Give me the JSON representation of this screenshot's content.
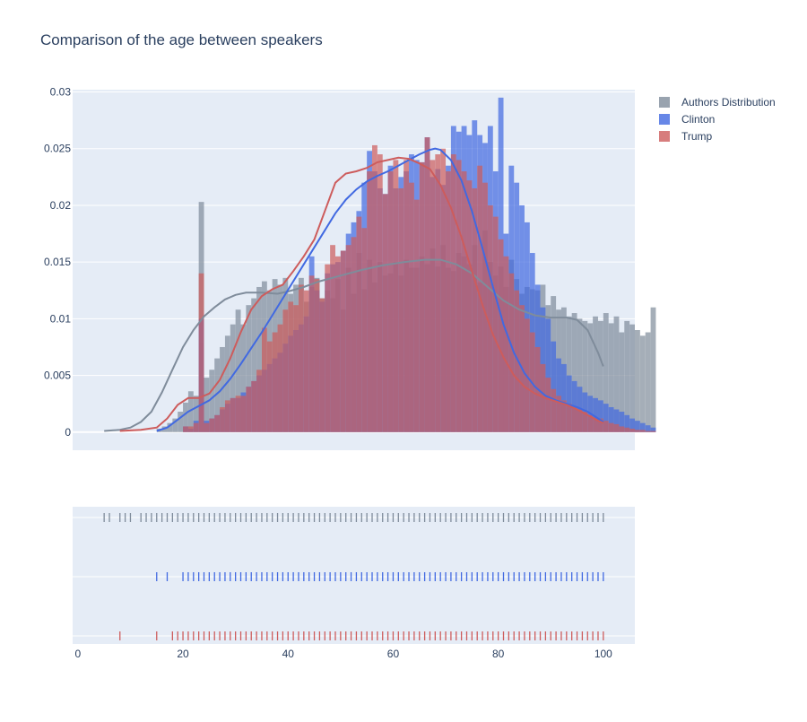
{
  "chart_data": {
    "type": "histogram-kde-rug",
    "title": "Comparison of the age between speakers",
    "xlabel": "",
    "ylabel": "",
    "xlim": [
      -1,
      106
    ],
    "ylim": [
      -0.0016,
      0.0302
    ],
    "x_ticks": [
      0,
      20,
      40,
      60,
      80,
      100
    ],
    "y_ticks": [
      0,
      0.005,
      0.01,
      0.015,
      0.02,
      0.025,
      0.03
    ],
    "y_tick_labels": [
      "0",
      "0.005",
      "0.01",
      "0.015",
      "0.02",
      "0.025",
      "0.03"
    ],
    "bin_start": 15,
    "bin_width": 1,
    "legend_position": "top-right",
    "series": [
      {
        "name": "Authors Distribution",
        "color": "#7f8c9b",
        "hist": [
          0.0003,
          0.0005,
          0.0008,
          0.0012,
          0.0018,
          0.0026,
          0.0036,
          0.0032,
          0.0203,
          0.0048,
          0.0055,
          0.0065,
          0.0075,
          0.0085,
          0.0095,
          0.0108,
          0.0095,
          0.0112,
          0.0118,
          0.0128,
          0.0133,
          0.0125,
          0.0135,
          0.013,
          0.0136,
          0.0122,
          0.013,
          0.0136,
          0.0115,
          0.0128,
          0.0136,
          0.0118,
          0.0125,
          0.0118,
          0.0135,
          0.0108,
          0.0145,
          0.0122,
          0.0158,
          0.0126,
          0.0152,
          0.0132,
          0.015,
          0.0138,
          0.014,
          0.015,
          0.0138,
          0.0152,
          0.0145,
          0.0145,
          0.0155,
          0.0148,
          0.0162,
          0.0146,
          0.0165,
          0.0145,
          0.0142,
          0.0158,
          0.0155,
          0.0148,
          0.0165,
          0.0132,
          0.0178,
          0.015,
          0.0138,
          0.0146,
          0.0128,
          0.0152,
          0.0135,
          0.0122,
          0.0128,
          0.0126,
          0.0125,
          0.013,
          0.0112,
          0.012,
          0.0108,
          0.011,
          0.0102,
          0.0105,
          0.01,
          0.0098,
          0.0096,
          0.0102,
          0.0098,
          0.0105,
          0.0096,
          0.0102,
          0.0088,
          0.0098,
          0.0095,
          0.009,
          0.0085,
          0.0088,
          0.011
        ],
        "kde": [
          [
            5,
            0.0001
          ],
          [
            8,
            0.0002
          ],
          [
            10,
            0.0004
          ],
          [
            12,
            0.0009
          ],
          [
            14,
            0.0018
          ],
          [
            16,
            0.0035
          ],
          [
            18,
            0.0055
          ],
          [
            20,
            0.0075
          ],
          [
            22,
            0.009
          ],
          [
            24,
            0.0102
          ],
          [
            26,
            0.011
          ],
          [
            28,
            0.0117
          ],
          [
            30,
            0.0121
          ],
          [
            32,
            0.0123
          ],
          [
            35,
            0.0123
          ],
          [
            38,
            0.0122
          ],
          [
            40,
            0.0124
          ],
          [
            43,
            0.0128
          ],
          [
            46,
            0.0133
          ],
          [
            50,
            0.0138
          ],
          [
            54,
            0.0143
          ],
          [
            58,
            0.0147
          ],
          [
            62,
            0.015
          ],
          [
            66,
            0.0152
          ],
          [
            69,
            0.0152
          ],
          [
            72,
            0.0148
          ],
          [
            75,
            0.014
          ],
          [
            78,
            0.0128
          ],
          [
            81,
            0.0116
          ],
          [
            84,
            0.0108
          ],
          [
            87,
            0.0103
          ],
          [
            90,
            0.0101
          ],
          [
            93,
            0.0101
          ],
          [
            95,
            0.0099
          ],
          [
            97,
            0.009
          ],
          [
            99,
            0.007
          ],
          [
            100,
            0.0058
          ]
        ],
        "rug": [
          5,
          6,
          8,
          9,
          10,
          12,
          13,
          14,
          15,
          16,
          17,
          18,
          19,
          20,
          21,
          22,
          23,
          24,
          25,
          26,
          27,
          28,
          29,
          30,
          31,
          32,
          33,
          34,
          35,
          36,
          37,
          38,
          39,
          40,
          41,
          42,
          43,
          44,
          45,
          46,
          47,
          48,
          49,
          50,
          51,
          52,
          53,
          54,
          55,
          56,
          57,
          58,
          59,
          60,
          61,
          62,
          63,
          64,
          65,
          66,
          67,
          68,
          69,
          70,
          71,
          72,
          73,
          74,
          75,
          76,
          77,
          78,
          79,
          80,
          81,
          82,
          83,
          84,
          85,
          86,
          87,
          88,
          89,
          90,
          91,
          92,
          93,
          94,
          95,
          96,
          97,
          98,
          99,
          100
        ]
      },
      {
        "name": "Clinton",
        "color": "#4169e1",
        "hist": [
          0,
          0,
          0,
          0,
          0,
          0.0005,
          0.0003,
          0.001,
          0.01,
          0.001,
          0.0012,
          0.0015,
          0.002,
          0.0025,
          0.003,
          0.003,
          0.0035,
          0.004,
          0.0045,
          0.005,
          0.0055,
          0.006,
          0.0065,
          0.007,
          0.0078,
          0.0085,
          0.009,
          0.0095,
          0.0102,
          0.0155,
          0.0125,
          0.0115,
          0.014,
          0.0148,
          0.015,
          0.016,
          0.0175,
          0.0185,
          0.0195,
          0.022,
          0.0248,
          0.023,
          0.0215,
          0.021,
          0.0235,
          0.0215,
          0.0225,
          0.023,
          0.0245,
          0.024,
          0.0238,
          0.026,
          0.0225,
          0.0232,
          0.0218,
          0.0235,
          0.027,
          0.0265,
          0.027,
          0.0262,
          0.0275,
          0.0262,
          0.0255,
          0.027,
          0.023,
          0.0295,
          0.0175,
          0.0235,
          0.022,
          0.02,
          0.0185,
          0.0158,
          0.013,
          0.011,
          0.01,
          0.008,
          0.0065,
          0.006,
          0.005,
          0.0045,
          0.004,
          0.0035,
          0.0032,
          0.003,
          0.0028,
          0.0025,
          0.0022,
          0.002,
          0.0018,
          0.0015,
          0.0012,
          0.001,
          0.0008,
          0.0006,
          0.0004
        ],
        "kde": [
          [
            15,
            0.0001
          ],
          [
            17,
            0.0004
          ],
          [
            19,
            0.0011
          ],
          [
            21,
            0.0018
          ],
          [
            23,
            0.0023
          ],
          [
            25,
            0.0028
          ],
          [
            27,
            0.0036
          ],
          [
            29,
            0.0047
          ],
          [
            31,
            0.006
          ],
          [
            33,
            0.0074
          ],
          [
            35,
            0.0088
          ],
          [
            37,
            0.0103
          ],
          [
            39,
            0.0118
          ],
          [
            41,
            0.0133
          ],
          [
            43,
            0.0148
          ],
          [
            45,
            0.0163
          ],
          [
            47,
            0.0178
          ],
          [
            49,
            0.0193
          ],
          [
            51,
            0.0205
          ],
          [
            53,
            0.0214
          ],
          [
            55,
            0.0221
          ],
          [
            57,
            0.0226
          ],
          [
            59,
            0.023
          ],
          [
            61,
            0.0235
          ],
          [
            63,
            0.024
          ],
          [
            65,
            0.0245
          ],
          [
            67,
            0.0249
          ],
          [
            68,
            0.025
          ],
          [
            69,
            0.0249
          ],
          [
            71,
            0.024
          ],
          [
            73,
            0.0222
          ],
          [
            75,
            0.0195
          ],
          [
            77,
            0.0162
          ],
          [
            79,
            0.0128
          ],
          [
            81,
            0.0095
          ],
          [
            83,
            0.007
          ],
          [
            85,
            0.0052
          ],
          [
            87,
            0.004
          ],
          [
            89,
            0.0032
          ],
          [
            91,
            0.0028
          ],
          [
            93,
            0.0025
          ],
          [
            95,
            0.0022
          ],
          [
            97,
            0.0018
          ],
          [
            99,
            0.0012
          ],
          [
            100,
            0.0009
          ]
        ],
        "rug": [
          15,
          17,
          20,
          21,
          22,
          23,
          24,
          25,
          26,
          27,
          28,
          29,
          30,
          31,
          32,
          33,
          34,
          35,
          36,
          37,
          38,
          39,
          40,
          41,
          42,
          43,
          44,
          45,
          46,
          47,
          48,
          49,
          50,
          51,
          52,
          53,
          54,
          55,
          56,
          57,
          58,
          59,
          60,
          61,
          62,
          63,
          64,
          65,
          66,
          67,
          68,
          69,
          70,
          71,
          72,
          73,
          74,
          75,
          76,
          77,
          78,
          79,
          80,
          81,
          82,
          83,
          84,
          85,
          86,
          87,
          88,
          89,
          90,
          91,
          92,
          93,
          94,
          95,
          96,
          97,
          98,
          99,
          100
        ]
      },
      {
        "name": "Trump",
        "color": "#cd5c5c",
        "hist": [
          0,
          0,
          0,
          0,
          0,
          0.0005,
          0.0005,
          0.0008,
          0.014,
          0.0008,
          0.0012,
          0.0015,
          0.0022,
          0.0028,
          0.003,
          0.0032,
          0.0032,
          0.004,
          0.0045,
          0.0055,
          0.0092,
          0.008,
          0.0088,
          0.0095,
          0.0108,
          0.0115,
          0.0112,
          0.013,
          0.0125,
          0.0138,
          0.0135,
          0.0118,
          0.0148,
          0.0165,
          0.0155,
          0.016,
          0.0165,
          0.0172,
          0.019,
          0.018,
          0.023,
          0.0253,
          0.0245,
          0.021,
          0.023,
          0.024,
          0.0215,
          0.024,
          0.022,
          0.0205,
          0.0238,
          0.026,
          0.024,
          0.0245,
          0.025,
          0.023,
          0.0245,
          0.024,
          0.023,
          0.0222,
          0.0215,
          0.0235,
          0.022,
          0.02,
          0.019,
          0.017,
          0.0155,
          0.014,
          0.0125,
          0.0112,
          0.01,
          0.0088,
          0.0075,
          0.006,
          0.0048,
          0.0038,
          0.0032,
          0.0028,
          0.0025,
          0.0022,
          0.002,
          0.0018,
          0.0015,
          0.0013,
          0.0012,
          0.001,
          0.0008,
          0.0007,
          0.0005,
          0.0004,
          0.0003,
          0.0002,
          0.0002,
          0.0001,
          0.0001
        ],
        "kde": [
          [
            8,
            0.0001
          ],
          [
            12,
            0.0002
          ],
          [
            15,
            0.0004
          ],
          [
            17,
            0.0012
          ],
          [
            19,
            0.0024
          ],
          [
            21,
            0.003
          ],
          [
            23,
            0.003
          ],
          [
            25,
            0.0034
          ],
          [
            27,
            0.0046
          ],
          [
            29,
            0.0065
          ],
          [
            31,
            0.0088
          ],
          [
            33,
            0.0108
          ],
          [
            35,
            0.012
          ],
          [
            37,
            0.0126
          ],
          [
            39,
            0.013
          ],
          [
            41,
            0.0142
          ],
          [
            43,
            0.0155
          ],
          [
            45,
            0.017
          ],
          [
            47,
            0.0195
          ],
          [
            49,
            0.022
          ],
          [
            51,
            0.0228
          ],
          [
            53,
            0.023
          ],
          [
            55,
            0.0233
          ],
          [
            57,
            0.0238
          ],
          [
            59,
            0.024
          ],
          [
            61,
            0.0242
          ],
          [
            63,
            0.0241
          ],
          [
            65,
            0.0237
          ],
          [
            67,
            0.0232
          ],
          [
            69,
            0.0218
          ],
          [
            71,
            0.0198
          ],
          [
            73,
            0.0172
          ],
          [
            75,
            0.0142
          ],
          [
            77,
            0.0112
          ],
          [
            79,
            0.0086
          ],
          [
            81,
            0.0066
          ],
          [
            83,
            0.005
          ],
          [
            85,
            0.004
          ],
          [
            87,
            0.0034
          ],
          [
            89,
            0.003
          ],
          [
            91,
            0.0027
          ],
          [
            93,
            0.0024
          ],
          [
            95,
            0.002
          ],
          [
            97,
            0.0015
          ],
          [
            99,
            0.001
          ],
          [
            100,
            0.0008
          ]
        ],
        "rug": [
          8,
          15,
          18,
          19,
          20,
          21,
          22,
          23,
          24,
          25,
          26,
          27,
          28,
          29,
          30,
          31,
          32,
          33,
          34,
          35,
          36,
          37,
          38,
          39,
          40,
          41,
          42,
          43,
          44,
          45,
          46,
          47,
          48,
          49,
          50,
          51,
          52,
          53,
          54,
          55,
          56,
          57,
          58,
          59,
          60,
          61,
          62,
          63,
          64,
          65,
          66,
          67,
          68,
          69,
          70,
          71,
          72,
          73,
          74,
          75,
          76,
          77,
          78,
          79,
          80,
          81,
          82,
          83,
          84,
          85,
          86,
          87,
          88,
          89,
          90,
          91,
          92,
          93,
          94,
          95,
          96,
          97,
          98,
          99,
          100
        ]
      }
    ]
  }
}
